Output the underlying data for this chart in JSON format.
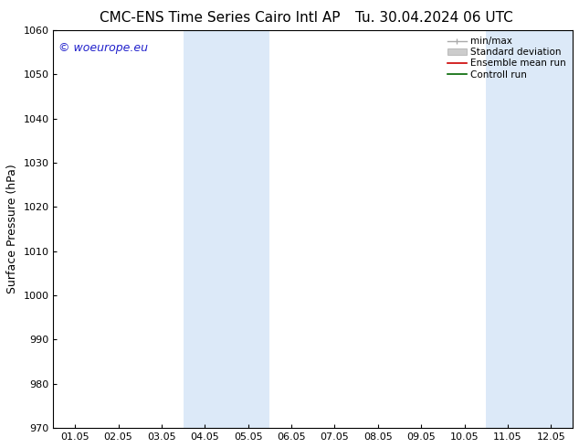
{
  "title_left": "CMC-ENS Time Series Cairo Intl AP",
  "title_right": "Tu. 30.04.2024 06 UTC",
  "ylabel": "Surface Pressure (hPa)",
  "ylim": [
    970,
    1060
  ],
  "yticks": [
    970,
    980,
    990,
    1000,
    1010,
    1020,
    1030,
    1040,
    1050,
    1060
  ],
  "xtick_labels": [
    "01.05",
    "02.05",
    "03.05",
    "04.05",
    "05.05",
    "06.05",
    "07.05",
    "08.05",
    "09.05",
    "10.05",
    "11.05",
    "12.05"
  ],
  "shaded_regions": [
    {
      "start": 3,
      "end": 5
    },
    {
      "start": 10,
      "end": 12
    }
  ],
  "shaded_color": "#dce9f8",
  "watermark": "© woeurope.eu",
  "watermark_color": "#2222cc",
  "background_color": "#ffffff",
  "spine_color": "#000000",
  "tick_color": "#000000",
  "label_color": "#000000",
  "title_fontsize": 11,
  "ylabel_fontsize": 9,
  "tick_fontsize": 8,
  "watermark_fontsize": 9
}
